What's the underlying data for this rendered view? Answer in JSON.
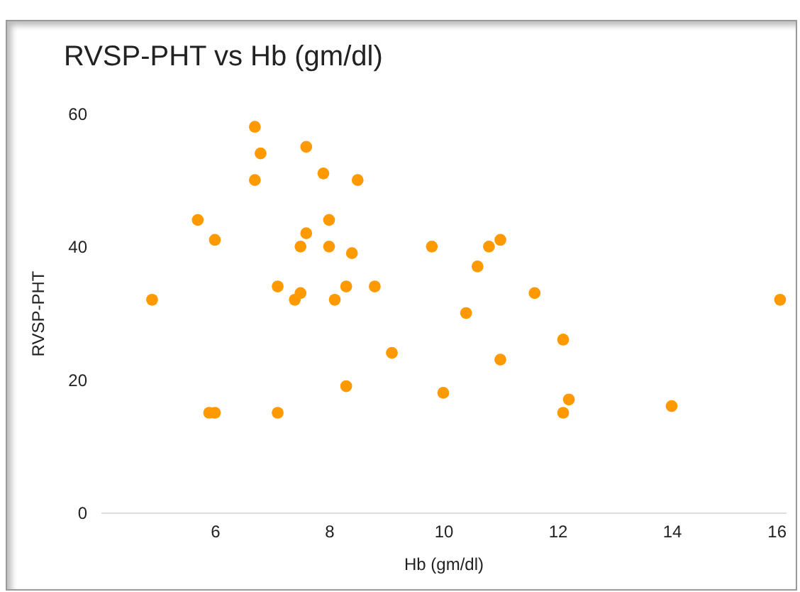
{
  "chart_data": {
    "type": "scatter",
    "title": "RVSP-PHT vs Hb (gm/dl)",
    "xlabel": "Hb (gm/dl)",
    "ylabel": "RVSP-PHT",
    "x": [
      4.9,
      5.7,
      6.0,
      5.9,
      6.0,
      6.7,
      6.8,
      6.7,
      7.1,
      7.1,
      7.4,
      7.5,
      7.5,
      7.6,
      7.6,
      7.9,
      8.0,
      8.0,
      8.1,
      8.3,
      8.4,
      8.5,
      8.3,
      8.8,
      9.1,
      9.8,
      10.0,
      10.4,
      10.6,
      10.8,
      11.0,
      11.0,
      11.6,
      12.1,
      12.2,
      12.1,
      14.0,
      15.9
    ],
    "series": [
      {
        "color": "#ff9900",
        "values": [
          32,
          44,
          41,
          15,
          15,
          58,
          54,
          50,
          34,
          15,
          32,
          33,
          40,
          42,
          55,
          51,
          44,
          40,
          32,
          34,
          39,
          50,
          19,
          34,
          24,
          40,
          18,
          30,
          37,
          40,
          41,
          23,
          33,
          26,
          17,
          15,
          16,
          32
        ]
      }
    ],
    "xlim": [
      4,
      16
    ],
    "xticks": [
      6,
      8,
      10,
      12,
      14,
      16
    ],
    "ylim": [
      0,
      60
    ],
    "yticks": [
      0,
      20,
      40,
      60
    ],
    "grid": false,
    "marker": "circle",
    "legend": false
  }
}
